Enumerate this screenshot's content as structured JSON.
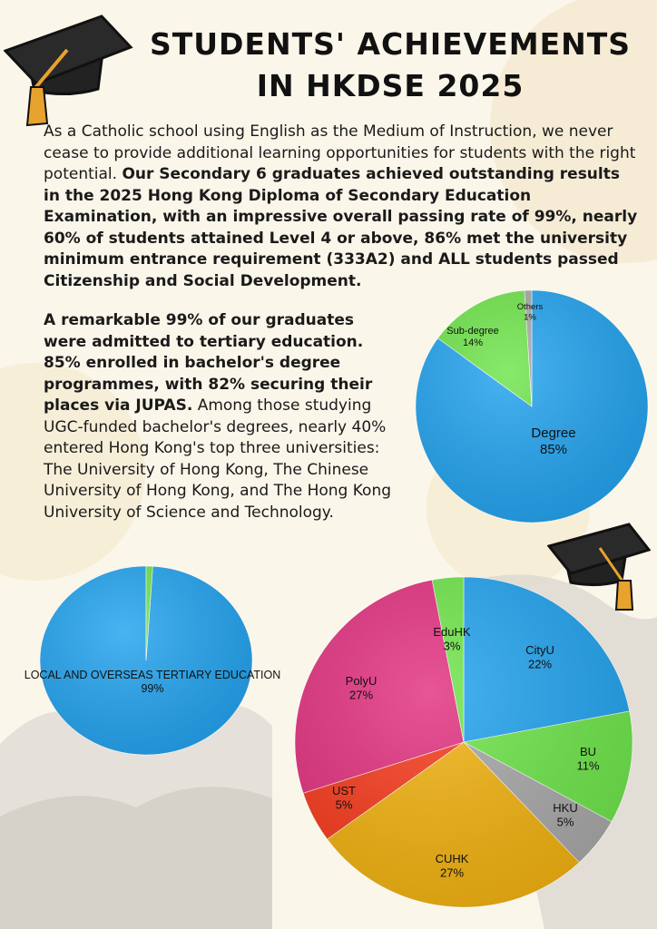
{
  "page": {
    "title": "STUDENTS' ACHIEVEMENTS IN HKDSE 2025",
    "intro_text": "As a Catholic school using English as the Medium of Instruction, we never cease to provide additional learning opportunities for students with the right potential. ",
    "intro_bold": "Our Secondary 6 graduates achieved outstanding results in the 2025 Hong Kong Diploma of Secondary Education Examination, with an impressive overall passing rate of 99%, nearly 60% of students attained Level 4 or above, 86% met the university minimum entrance requirement (333A2) and ALL students passed Citizenship and Social Development.",
    "para2_bold": "A remarkable 99% of our graduates were admitted to tertiary education. 85% enrolled in bachelor's degree programmes, with 82% securing their places via JUPAS.",
    "para2_text": " Among those studying UGC-funded bachelor's degrees, nearly 40% entered Hong Kong's top three universities: The University of Hong Kong, The Chinese University of Hong Kong, and The Hong Kong University of Science and Technology."
  },
  "colors": {
    "blue": "#22a3ef",
    "green": "#6ee54a",
    "gray": "#a8a8a8",
    "pink": "#e2307f",
    "red": "#f73a1c",
    "yellow": "#f2b20f",
    "background": "#fbf6ea"
  },
  "icons": [
    "graduation-cap-icon",
    "graduation-cap-icon"
  ],
  "chart_data": [
    {
      "type": "pie",
      "slices": [
        {
          "label": "Degree",
          "value": 85,
          "display": "85%"
        },
        {
          "label": "Sub-degree",
          "value": 14,
          "display": "14%"
        },
        {
          "label": "Others",
          "value": 1,
          "display": "1%"
        }
      ]
    },
    {
      "type": "pie",
      "slices": [
        {
          "label": "LOCAL AND OVERSEAS TERTIARY EDUCATION",
          "value": 99,
          "display": "99%"
        },
        {
          "label": "",
          "value": 1,
          "display": ""
        }
      ]
    },
    {
      "type": "pie",
      "slices": [
        {
          "label": "CityU",
          "value": 22,
          "display": "22%"
        },
        {
          "label": "BU",
          "value": 11,
          "display": "11%"
        },
        {
          "label": "HKU",
          "value": 5,
          "display": "5%"
        },
        {
          "label": "CUHK",
          "value": 27,
          "display": "27%"
        },
        {
          "label": "UST",
          "value": 5,
          "display": "5%"
        },
        {
          "label": "PolyU",
          "value": 27,
          "display": "27%"
        },
        {
          "label": "EduHK",
          "value": 3,
          "display": "3%"
        }
      ]
    }
  ]
}
